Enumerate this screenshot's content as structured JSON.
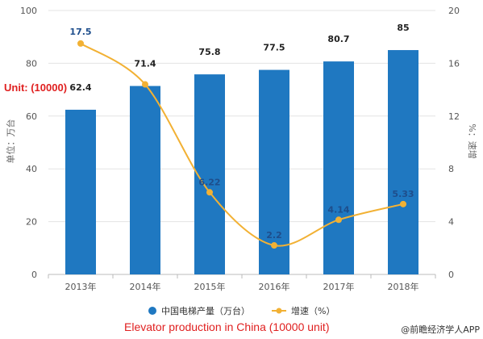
{
  "chart_data": {
    "type": "bar",
    "categories": [
      "2013年",
      "2014年",
      "2015年",
      "2016年",
      "2017年",
      "2018年"
    ],
    "series": [
      {
        "name": "中国电梯产量（万台）",
        "type": "bar",
        "axis": "left",
        "color": "#1f78c1",
        "values": [
          62.4,
          71.4,
          75.8,
          77.5,
          80.7,
          85
        ],
        "labels": [
          "62.4",
          "71.4",
          "75.8",
          "77.5",
          "80.7",
          "85"
        ]
      },
      {
        "name": "增速（%）",
        "type": "line",
        "axis": "right",
        "color": "#f2b134",
        "values": [
          17.5,
          14.4,
          6.22,
          2.2,
          4.14,
          5.33
        ],
        "labels": [
          "17.5",
          "",
          "6.22",
          "2.2",
          "4.14",
          "5.33"
        ]
      }
    ],
    "ylabel": "单位：万台",
    "y2label": "%：速增",
    "ylim": [
      0,
      100
    ],
    "yticks": [
      "0",
      "20",
      "40",
      "60",
      "80",
      "100"
    ],
    "y2lim": [
      0,
      20
    ],
    "y2ticks": [
      "0",
      "4",
      "8",
      "12",
      "16",
      "20"
    ],
    "grid": "horizontal",
    "legend": "bottom"
  },
  "annotations": {
    "unit_note": "Unit: (10000)",
    "caption": "Elevator production in China (10000 unit)",
    "source": "@前瞻经济学人APP"
  }
}
